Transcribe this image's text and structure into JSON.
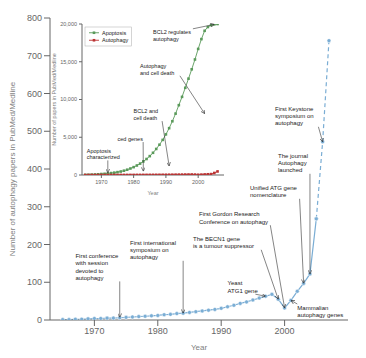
{
  "chart_data": [
    {
      "type": "line",
      "xlabel": "Year",
      "ylabel": "Number of autophagy papers in PubMed/Medline",
      "xlim": [
        1963,
        2010
      ],
      "ylim": [
        0,
        800
      ],
      "xticks": [
        1970,
        1980,
        1990,
        2000
      ],
      "yticks": [
        0,
        100,
        200,
        300,
        400,
        500,
        600,
        700,
        800
      ],
      "grid": false,
      "series": [
        {
          "x": [
            1965,
            1966,
            1967,
            1968,
            1969,
            1970,
            1971,
            1972,
            1973,
            1974,
            1975,
            1976,
            1977,
            1978,
            1979,
            1980,
            1981,
            1982,
            1983,
            1984,
            1985,
            1986,
            1987,
            1988,
            1989,
            1990,
            1991,
            1992,
            1993,
            1994,
            1995,
            1996,
            1997,
            1998,
            1999,
            2000,
            2001,
            2002,
            2003,
            2004,
            2005
          ],
          "values": [
            1,
            1,
            2,
            2,
            3,
            4,
            4,
            5,
            5,
            6,
            7,
            8,
            9,
            10,
            11,
            12,
            14,
            15,
            17,
            18,
            20,
            22,
            24,
            26,
            28,
            31,
            35,
            39,
            44,
            48,
            53,
            58,
            63,
            68,
            55,
            32,
            52,
            76,
            97,
            122,
            268
          ],
          "color": "#7aadd4",
          "line_style": "solid",
          "marker": "circle"
        },
        {
          "x": [
            2005,
            2006,
            2007
          ],
          "values": [
            268,
            472,
            740
          ],
          "color": "#7aadd4",
          "line_style": "dashed",
          "marker": "circle"
        }
      ],
      "annotations": [
        {
          "text": "First conference\nwith session\ndevoted to\nautophagy",
          "x": 1974,
          "y": 7
        },
        {
          "text": "First international\nsymposium on\nautophagy",
          "x": 1984,
          "y": 18
        },
        {
          "text": "Yeast\nATG1 gene",
          "x": 1997,
          "y": 63
        },
        {
          "text": "The BECN1 gene\nis a tumour suppressor",
          "x": 1999,
          "y": 55
        },
        {
          "text": "First Gordon Research\nConference on autophagy",
          "x": 2000,
          "y": 32
        },
        {
          "text": "Unified ATG gene\nnomenclature",
          "x": 2003,
          "y": 97
        },
        {
          "text": "The journal\nAutophagy\nlaunched",
          "x": 2004,
          "y": 122
        },
        {
          "text": "Mammalian\nautophagy genes",
          "x": 2001,
          "y": 52
        },
        {
          "text": "First Keystone\nsymposium on\nautophagy",
          "x": 2006,
          "y": 472
        }
      ]
    },
    {
      "type": "line",
      "xlabel": "Year",
      "ylabel": "Number of papers in PubMed/Medline",
      "xlim": [
        1964,
        2008
      ],
      "ylim": [
        0,
        20000
      ],
      "xticks": [
        1970,
        1980,
        1990,
        2000
      ],
      "yticks": [
        0,
        {
          "value": 5000,
          "label": "5,000"
        },
        {
          "value": 10000,
          "label": "10,000"
        },
        {
          "value": 15000,
          "label": "15,000"
        },
        {
          "value": 20000,
          "label": "20,000"
        }
      ],
      "grid": false,
      "legend": "upper left",
      "x": [
        1965,
        1966,
        1967,
        1968,
        1969,
        1970,
        1971,
        1972,
        1973,
        1974,
        1975,
        1976,
        1977,
        1978,
        1979,
        1980,
        1981,
        1982,
        1983,
        1984,
        1985,
        1986,
        1987,
        1988,
        1989,
        1990,
        1991,
        1992,
        1993,
        1994,
        1995,
        1996,
        1997,
        1998,
        1999,
        2000,
        2001,
        2002,
        2003,
        2004,
        2005,
        2006
      ],
      "series": [
        {
          "name": "Apoptosis",
          "color": "#5a9a5a",
          "line_style": "solid",
          "marker": "square",
          "values": [
            20,
            30,
            50,
            70,
            95,
            130,
            160,
            200,
            255,
            310,
            380,
            460,
            570,
            700,
            860,
            1040,
            1260,
            1510,
            1800,
            2120,
            2500,
            2940,
            3450,
            4010,
            4650,
            5380,
            6200,
            7120,
            8130,
            9250,
            10350,
            11550,
            12760,
            14000,
            15300,
            16700,
            18000,
            19100,
            19600,
            19850,
            19950,
            20000
          ]
        },
        {
          "name": "Autophagy",
          "color": "#bb3333",
          "line_style": "solid",
          "marker": "square",
          "values": [
            1,
            1,
            2,
            2,
            3,
            4,
            4,
            5,
            5,
            6,
            7,
            8,
            9,
            10,
            11,
            12,
            14,
            15,
            17,
            18,
            20,
            22,
            24,
            26,
            28,
            31,
            35,
            39,
            44,
            48,
            53,
            58,
            63,
            68,
            55,
            32,
            52,
            76,
            97,
            122,
            268,
            472
          ]
        }
      ],
      "annotations": [
        {
          "text": "Apoptosis\ncharacterized",
          "x": 1972,
          "y": 300
        },
        {
          "text": "ced genes",
          "x": 1983,
          "y": 500
        },
        {
          "text": "BCL2 and\ncell death",
          "x": 1991,
          "y": 1200
        },
        {
          "text": "Autophagy\nand cell death",
          "x": 2002,
          "y": 8130
        },
        {
          "text": "BCL2 regulates\nautophagy",
          "x": 2005,
          "y": 19950
        }
      ]
    }
  ]
}
